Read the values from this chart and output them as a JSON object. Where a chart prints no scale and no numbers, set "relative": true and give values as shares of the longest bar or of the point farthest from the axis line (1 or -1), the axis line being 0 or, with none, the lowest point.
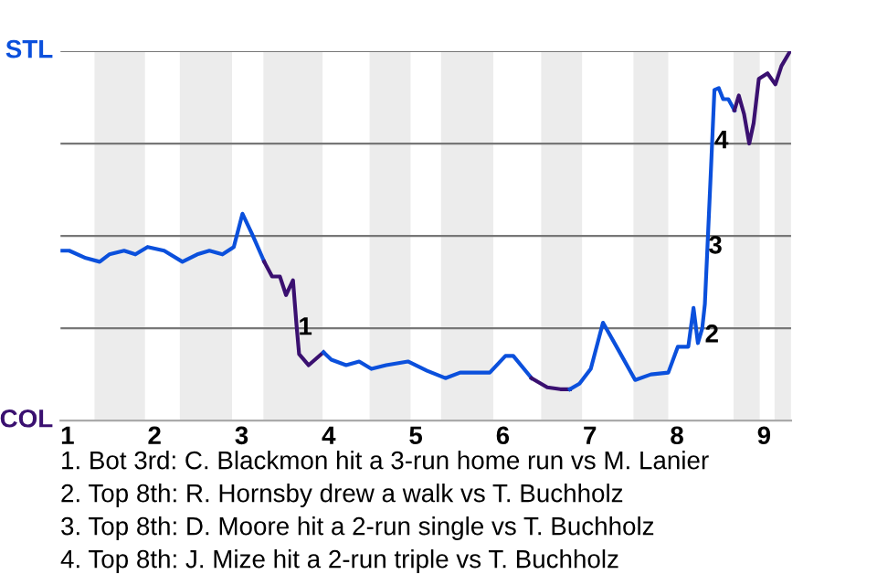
{
  "chart_data": {
    "type": "line",
    "relative": true,
    "xlim": [
      0.92,
      9.31
    ],
    "xticks": [
      1,
      2,
      3,
      4,
      5,
      6,
      7,
      8,
      9
    ],
    "grid": "y",
    "marker": "none",
    "line_style": "solid",
    "bands": [
      {
        "axis": "x",
        "from": 1.31,
        "to": 1.89,
        "color": "#ececec"
      },
      {
        "axis": "x",
        "from": 2.29,
        "to": 2.89,
        "color": "#ececec"
      },
      {
        "axis": "x",
        "from": 3.25,
        "to": 3.93,
        "color": "#ececec"
      },
      {
        "axis": "x",
        "from": 4.47,
        "to": 4.94,
        "color": "#ececec"
      },
      {
        "axis": "x",
        "from": 5.29,
        "to": 5.89,
        "color": "#ececec"
      },
      {
        "axis": "x",
        "from": 6.44,
        "to": 6.91,
        "color": "#ececec"
      },
      {
        "axis": "x",
        "from": 7.5,
        "to": 7.9,
        "color": "#ececec"
      },
      {
        "axis": "x",
        "from": 8.65,
        "to": 8.95,
        "color": "#ececec"
      },
      {
        "axis": "x",
        "from": 9.12,
        "to": 9.31,
        "color": "#ececec"
      }
    ],
    "series": [
      {
        "color": "#0b50dc",
        "x": [
          0.92,
          1.02,
          1.21,
          1.37,
          1.48,
          1.65,
          1.78,
          1.92,
          2.11,
          2.32,
          2.49,
          2.63,
          2.78,
          2.91,
          3.01,
          3.13,
          3.26
        ],
        "values": [
          0.46,
          0.46,
          0.44,
          0.43,
          0.45,
          0.46,
          0.45,
          0.47,
          0.46,
          0.43,
          0.45,
          0.46,
          0.45,
          0.47,
          0.56,
          0.5,
          0.43
        ]
      },
      {
        "color": "#3a1070",
        "x": [
          3.26,
          3.35,
          3.44,
          3.51,
          3.59,
          3.63,
          3.66,
          3.77,
          3.94
        ],
        "values": [
          0.43,
          0.39,
          0.39,
          0.34,
          0.38,
          0.26,
          0.18,
          0.15,
          0.185
        ]
      },
      {
        "color": "#0b50dc",
        "x": [
          3.94,
          4.03,
          4.2,
          4.35,
          4.49,
          4.66,
          4.91,
          5.13,
          5.34,
          5.51,
          5.7,
          5.85,
          6.03,
          6.12,
          6.33
        ],
        "values": [
          0.185,
          0.165,
          0.15,
          0.16,
          0.14,
          0.15,
          0.16,
          0.135,
          0.115,
          0.13,
          0.13,
          0.13,
          0.175,
          0.175,
          0.115
        ]
      },
      {
        "color": "#3a1070",
        "x": [
          6.33,
          6.51,
          6.66,
          6.77
        ],
        "values": [
          0.115,
          0.09,
          0.085,
          0.085
        ]
      },
      {
        "color": "#0b50dc",
        "x": [
          6.77,
          6.88,
          7.01,
          7.15,
          7.33,
          7.52,
          7.7,
          7.9,
          8.01,
          8.13,
          8.19,
          8.24,
          8.29,
          8.32,
          8.35,
          8.39,
          8.43,
          8.48,
          8.53,
          8.59,
          8.66
        ],
        "values": [
          0.085,
          0.1,
          0.14,
          0.265,
          0.19,
          0.11,
          0.125,
          0.13,
          0.2,
          0.2,
          0.305,
          0.21,
          0.25,
          0.315,
          0.47,
          0.68,
          0.895,
          0.9,
          0.87,
          0.87,
          0.84
        ]
      },
      {
        "color": "#3a1070",
        "x": [
          8.66,
          8.71,
          8.77,
          8.83,
          8.88,
          8.94,
          9.04,
          9.13,
          9.2,
          9.3
        ],
        "values": [
          0.84,
          0.88,
          0.83,
          0.75,
          0.805,
          0.925,
          0.94,
          0.91,
          0.96,
          1
        ]
      }
    ],
    "annotations": [
      "STL",
      "COL",
      {
        "text": "1",
        "x": 3.65,
        "y": 0.25
      },
      {
        "text": "2",
        "x": 8.32,
        "y": 0.23
      },
      {
        "text": "3",
        "x": 8.36,
        "y": 0.47
      },
      {
        "text": "4",
        "x": 8.43,
        "y": 0.755
      },
      "1. Bot 3rd: C. Blackmon hit a 3-run home run vs M. Lanier",
      "2. Top 8th: R. Hornsby drew a walk vs T. Buchholz",
      "3. Top 8th: D. Moore hit a 2-run single vs T. Buchholz",
      "4. Top 8th: J. Mize hit a 2-run triple vs T. Buchholz"
    ]
  }
}
